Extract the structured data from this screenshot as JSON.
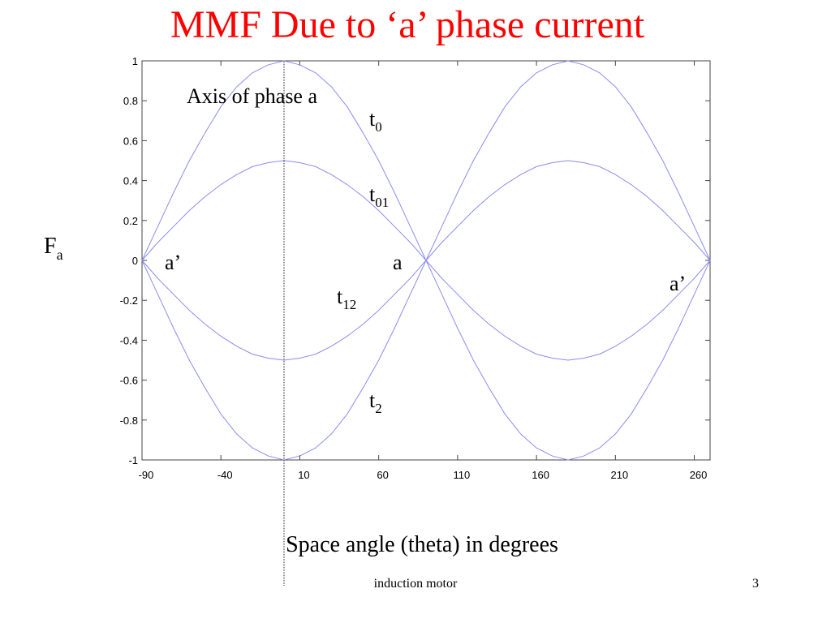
{
  "chart_data": {
    "type": "line",
    "title": "MMF Due to ‘a’ phase current",
    "x_label": "Space angle (theta) in degrees",
    "y_label": {
      "text": "F",
      "sub": "a"
    },
    "footer": "induction motor",
    "page_number": "3",
    "xlim": [
      -90,
      270
    ],
    "ylim": [
      -1,
      1
    ],
    "xticks": [
      -90,
      -40,
      10,
      60,
      110,
      160,
      210,
      260
    ],
    "yticks": [
      -1,
      -0.8,
      -0.6,
      -0.4,
      -0.2,
      0,
      0.2,
      0.4,
      0.6,
      0.8,
      1
    ],
    "vline": 0,
    "x": [
      -90,
      -80,
      -70,
      -60,
      -50,
      -40,
      -30,
      -20,
      -10,
      0,
      10,
      20,
      30,
      40,
      50,
      60,
      70,
      80,
      90,
      100,
      110,
      120,
      130,
      140,
      150,
      160,
      170,
      180,
      190,
      200,
      210,
      220,
      230,
      240,
      250,
      260,
      270
    ],
    "series": [
      {
        "color": "#8c8cf0",
        "values": [
          0,
          0.17,
          0.34,
          0.5,
          0.64,
          0.77,
          0.87,
          0.94,
          0.98,
          1,
          0.98,
          0.94,
          0.87,
          0.77,
          0.64,
          0.5,
          0.34,
          0.17,
          0,
          -0.17,
          -0.34,
          -0.5,
          -0.64,
          -0.77,
          -0.87,
          -0.94,
          -0.98,
          -1,
          -0.98,
          -0.94,
          -0.87,
          -0.77,
          -0.64,
          -0.5,
          -0.34,
          -0.17,
          0
        ]
      },
      {
        "color": "#8c8cf0",
        "values": [
          0,
          0.09,
          0.17,
          0.25,
          0.32,
          0.38,
          0.43,
          0.47,
          0.49,
          0.5,
          0.49,
          0.47,
          0.43,
          0.38,
          0.32,
          0.25,
          0.17,
          0.09,
          0,
          -0.09,
          -0.17,
          -0.25,
          -0.32,
          -0.38,
          -0.43,
          -0.47,
          -0.49,
          -0.5,
          -0.49,
          -0.47,
          -0.43,
          -0.38,
          -0.32,
          -0.25,
          -0.17,
          -0.09,
          0
        ]
      },
      {
        "color": "#8c8cf0",
        "values": [
          0,
          -0.09,
          -0.17,
          -0.25,
          -0.32,
          -0.38,
          -0.43,
          -0.47,
          -0.49,
          -0.5,
          -0.49,
          -0.47,
          -0.43,
          -0.38,
          -0.32,
          -0.25,
          -0.17,
          -0.09,
          0,
          0.09,
          0.17,
          0.25,
          0.32,
          0.38,
          0.43,
          0.47,
          0.49,
          0.5,
          0.49,
          0.47,
          0.43,
          0.38,
          0.32,
          0.25,
          0.17,
          0.09,
          0
        ]
      },
      {
        "color": "#8c8cf0",
        "values": [
          0,
          -0.17,
          -0.34,
          -0.5,
          -0.64,
          -0.77,
          -0.87,
          -0.94,
          -0.98,
          -1,
          -0.98,
          -0.94,
          -0.87,
          -0.77,
          -0.64,
          -0.5,
          -0.34,
          -0.17,
          0,
          0.17,
          0.34,
          0.5,
          0.64,
          0.77,
          0.87,
          0.94,
          0.98,
          1,
          0.98,
          0.94,
          0.87,
          0.77,
          0.64,
          0.5,
          0.34,
          0.17,
          0
        ]
      }
    ],
    "annotations": [
      {
        "text": "Axis of phase a"
      },
      {
        "text": "t",
        "sub": "0"
      },
      {
        "text": "t",
        "sub": "01"
      },
      {
        "text": "a’"
      },
      {
        "text": "a"
      },
      {
        "text": "t",
        "sub": "12"
      },
      {
        "text": "a’"
      },
      {
        "text": "t",
        "sub": "2"
      }
    ]
  }
}
